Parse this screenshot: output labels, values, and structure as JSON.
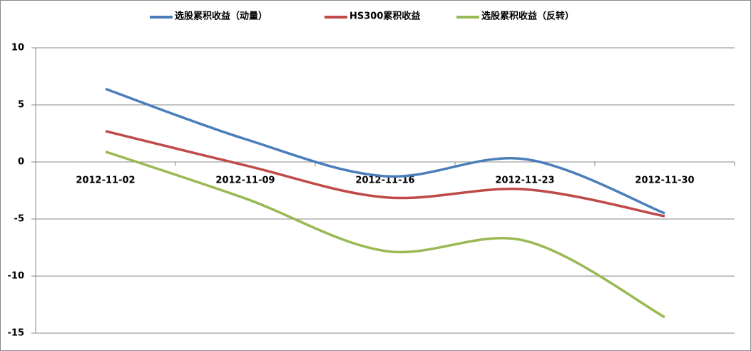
{
  "chart_data": {
    "type": "line",
    "categories": [
      "2012-11-02",
      "2012-11-09",
      "2012-11-16",
      "2012-11-23",
      "2012-11-30"
    ],
    "series": [
      {
        "name": "选股累积收益（动量）",
        "color": "#4a7ebb",
        "values": [
          6.4,
          2.0,
          -1.25,
          0.25,
          -4.5
        ]
      },
      {
        "name": "HS300累积收益",
        "color": "#be4b48",
        "values": [
          2.7,
          -0.3,
          -3.1,
          -2.4,
          -4.75
        ]
      },
      {
        "name": "选股累积收益（反转）",
        "color": "#98b954",
        "values": [
          0.9,
          -3.2,
          -7.8,
          -6.9,
          -13.6
        ]
      }
    ],
    "ylim": [
      -15,
      10
    ],
    "yticks": [
      -15,
      -10,
      -5,
      0,
      5,
      10
    ],
    "grid": true,
    "legend": "top"
  }
}
